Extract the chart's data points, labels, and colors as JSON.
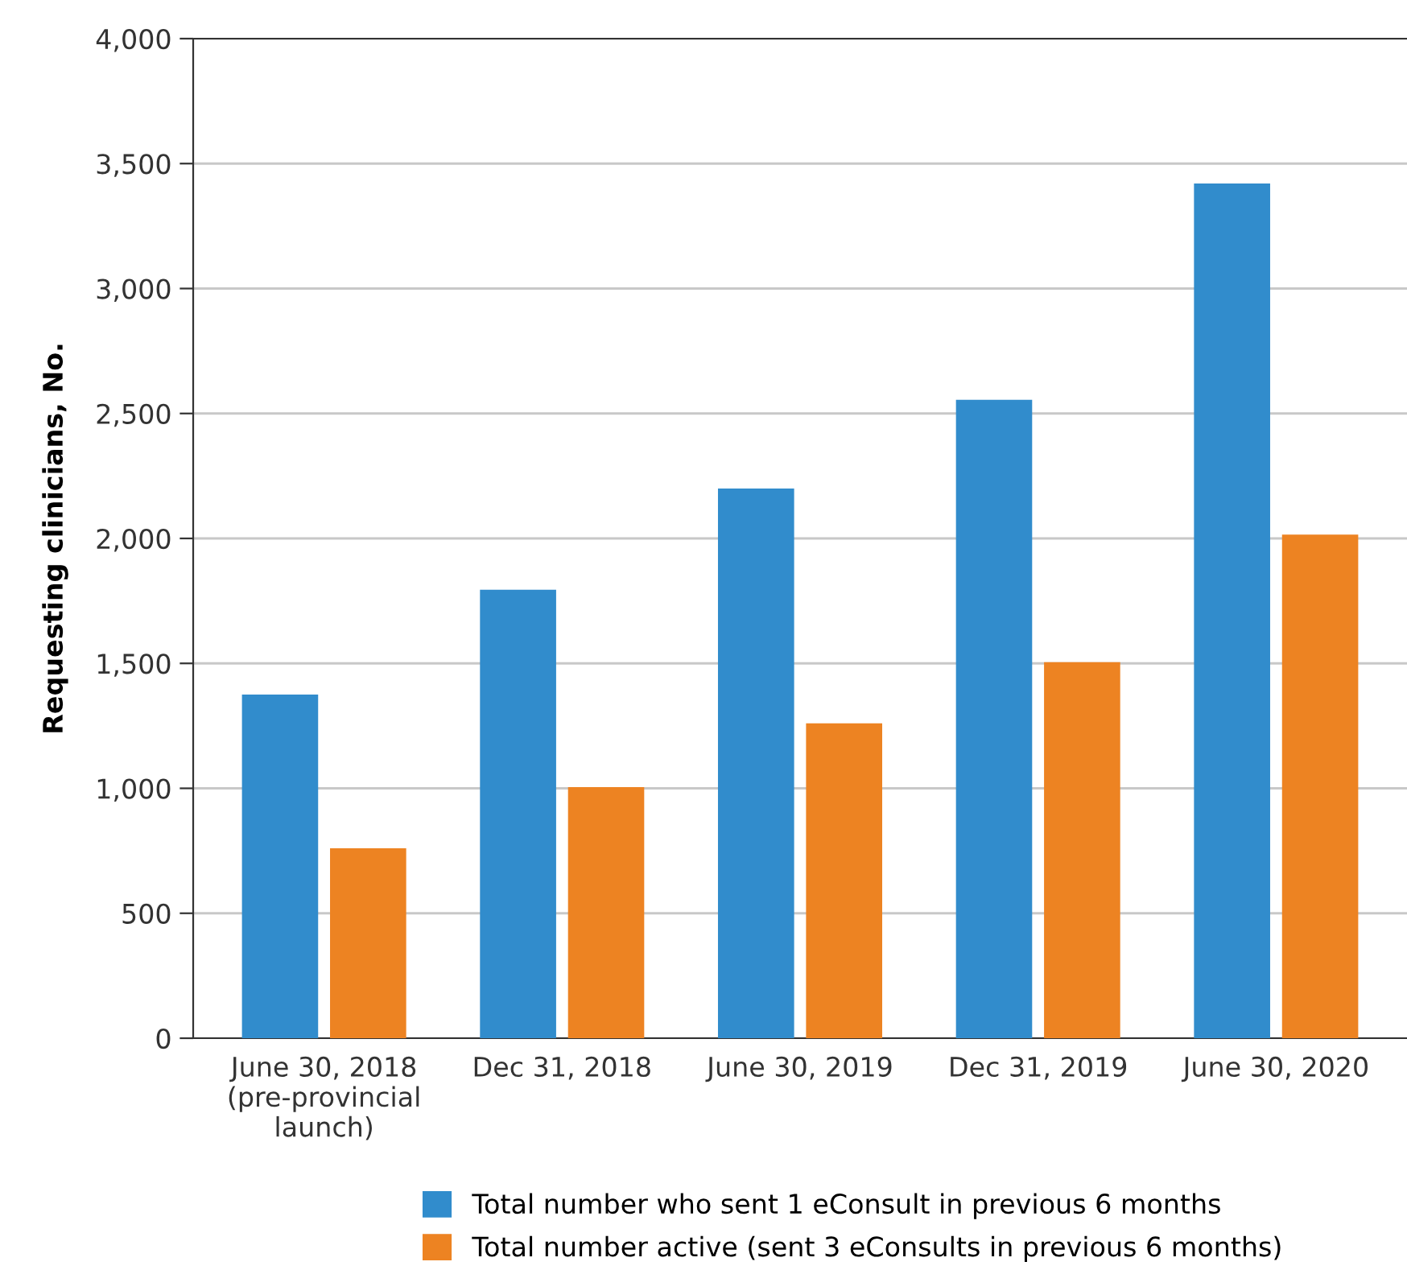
{
  "chart_data": {
    "type": "bar",
    "ylabel": "Requesting clinicians, No.",
    "categories": [
      "June 30, 2018\n(pre-provincial\nlaunch)",
      "Dec 31, 2018",
      "June 30, 2019",
      "Dec 31, 2019",
      "June 30, 2020"
    ],
    "series": [
      {
        "name": "Total number who sent 1 eConsult in previous 6 months",
        "color": "#318ccc",
        "values": [
          1375,
          1795,
          2200,
          2555,
          3420
        ]
      },
      {
        "name": "Total number active (sent 3 eConsults in previous 6 months)",
        "color": "#ed8322",
        "values": [
          760,
          1005,
          1260,
          1505,
          2015
        ]
      }
    ],
    "ylim": [
      0,
      4000
    ],
    "yticks": [
      {
        "value": 0,
        "label": "0"
      },
      {
        "value": 500,
        "label": "500"
      },
      {
        "value": 1000,
        "label": "1,000"
      },
      {
        "value": 1500,
        "label": "1,500"
      },
      {
        "value": 2000,
        "label": "2,000"
      },
      {
        "value": 2500,
        "label": "2,500"
      },
      {
        "value": 3000,
        "label": "3,000"
      },
      {
        "value": 3500,
        "label": "3,500"
      },
      {
        "value": 4000,
        "label": "4,000"
      }
    ],
    "grid": "y",
    "legend": "bottom"
  }
}
